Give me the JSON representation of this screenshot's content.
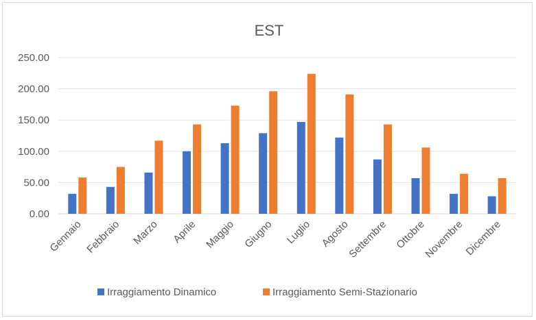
{
  "chart_data": {
    "type": "bar",
    "title": "EST",
    "xlabel": "",
    "ylabel": "",
    "ylim": [
      0,
      250
    ],
    "yticks": [
      "0.00",
      "50.00",
      "100.00",
      "150.00",
      "200.00",
      "250.00"
    ],
    "grid": true,
    "legend_position": "bottom",
    "categories": [
      "Gennaio",
      "Febbraio",
      "Marzo",
      "Aprile",
      "Maggio",
      "Giugno",
      "Luglio",
      "Agosto",
      "Settembre",
      "Ottobre",
      "Novembre",
      "Dicembre"
    ],
    "series": [
      {
        "name": "Irraggiamento Dinamico",
        "color": "#4472c4",
        "values": [
          32,
          43,
          66,
          100,
          113,
          129,
          147,
          122,
          87,
          57,
          32,
          28
        ]
      },
      {
        "name": "Irraggiamento Semi-Stazionario",
        "color": "#ed7d31",
        "values": [
          58,
          75,
          117,
          143,
          173,
          196,
          224,
          191,
          143,
          106,
          64,
          57
        ]
      }
    ]
  }
}
